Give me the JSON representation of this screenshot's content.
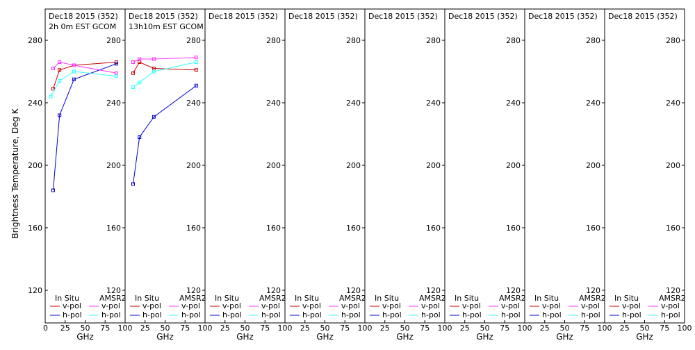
{
  "chart_data": {
    "type": "line",
    "ylabel": "Brightness Temperature, Deg K",
    "xlabel": "GHz",
    "ylim": [
      100,
      300
    ],
    "xlim": [
      0,
      100
    ],
    "yticks": [
      "120",
      "160",
      "200",
      "240",
      "280"
    ],
    "xticks": [
      "0",
      "25",
      "50",
      "75",
      "100"
    ],
    "legend": {
      "left_title": "In Situ",
      "right_title": "AMSR2",
      "entries": [
        {
          "label": "v-pol",
          "color": "#cc0000"
        },
        {
          "label": "h-pol",
          "color": "#0000cc"
        },
        {
          "label": "v-pol",
          "color": "#ff33ff"
        },
        {
          "label": "h-pol",
          "color": "#33ffff"
        }
      ]
    },
    "panels": [
      {
        "title": "Dec18 2015 (352)",
        "subtitle": "2h 0m EST GCOM",
        "series": [
          {
            "key": "insitu_v",
            "color": "#cc0000",
            "x": [
              10,
              18,
              36,
              89
            ],
            "y": [
              249,
              261,
              264,
              266
            ]
          },
          {
            "key": "insitu_h",
            "color": "#0000cc",
            "x": [
              10,
              18,
              36,
              89
            ],
            "y": [
              184,
              232,
              255,
              265
            ]
          },
          {
            "key": "amsr2_v",
            "color": "#ff33ff",
            "x": [
              10,
              18,
              36,
              89
            ],
            "y": [
              262,
              266,
              264,
              259
            ]
          },
          {
            "key": "amsr2_h",
            "color": "#33ffff",
            "x": [
              7,
              18,
              36,
              89
            ],
            "y": [
              244,
              254,
              260,
              257
            ]
          }
        ]
      },
      {
        "title": "Dec18 2015 (352)",
        "subtitle": "13h10m EST GCOM",
        "series": [
          {
            "key": "insitu_v",
            "color": "#cc0000",
            "x": [
              10,
              18,
              36,
              89
            ],
            "y": [
              259,
              266,
              262,
              261
            ]
          },
          {
            "key": "insitu_h",
            "color": "#0000cc",
            "x": [
              10,
              18,
              36,
              89
            ],
            "y": [
              188,
              218,
              231,
              251
            ]
          },
          {
            "key": "amsr2_v",
            "color": "#ff33ff",
            "x": [
              10,
              18,
              36,
              89
            ],
            "y": [
              266,
              268,
              268,
              269
            ]
          },
          {
            "key": "amsr2_h",
            "color": "#33ffff",
            "x": [
              10,
              18,
              36,
              89
            ],
            "y": [
              250,
              253,
              260,
              266
            ]
          }
        ]
      },
      {
        "title": "Dec18 2015 (352)",
        "subtitle": "",
        "series": []
      },
      {
        "title": "Dec18 2015 (352)",
        "subtitle": "",
        "series": []
      },
      {
        "title": "Dec18 2015 (352)",
        "subtitle": "",
        "series": []
      },
      {
        "title": "Dec18 2015 (352)",
        "subtitle": "",
        "series": []
      },
      {
        "title": "Dec18 2015 (352)",
        "subtitle": "",
        "series": []
      },
      {
        "title": "Dec18 2015 (352)",
        "subtitle": "",
        "series": []
      }
    ]
  }
}
